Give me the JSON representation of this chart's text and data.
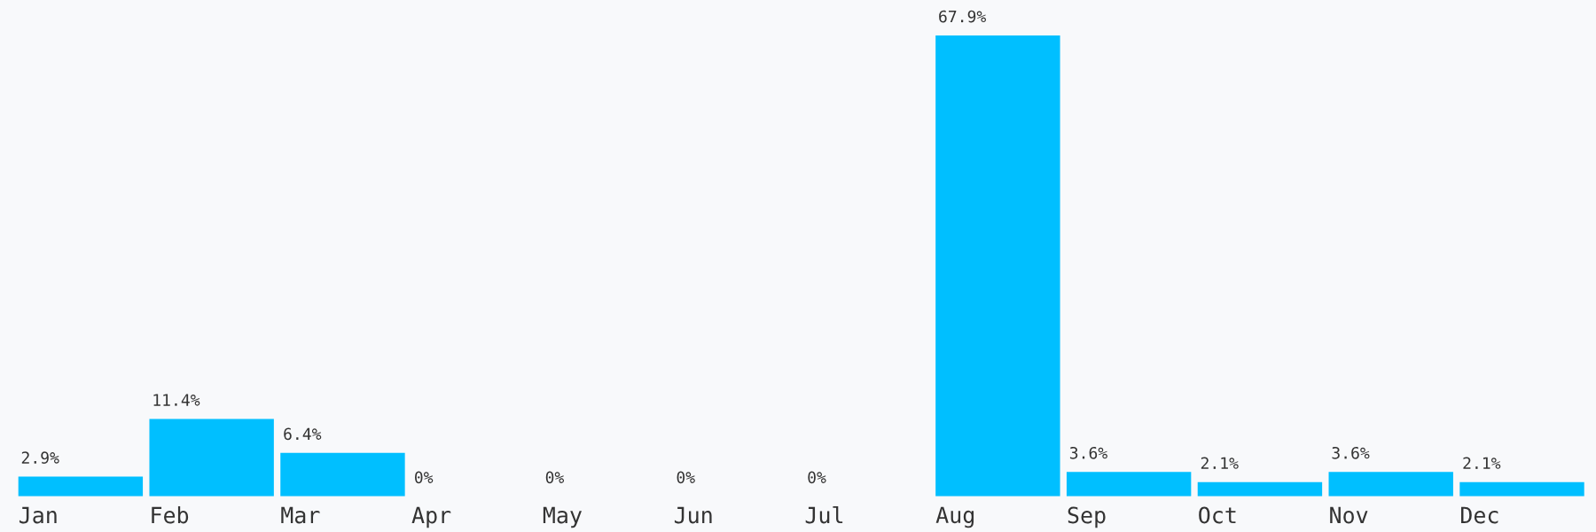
{
  "chart_data": {
    "type": "bar",
    "categories": [
      "Jan",
      "Feb",
      "Mar",
      "Apr",
      "May",
      "Jun",
      "Jul",
      "Aug",
      "Sep",
      "Oct",
      "Nov",
      "Dec"
    ],
    "values": [
      2.9,
      11.4,
      6.4,
      0,
      0,
      0,
      0,
      67.9,
      3.6,
      2.1,
      3.6,
      2.1
    ],
    "value_labels": [
      "2.9%",
      "11.4%",
      "6.4%",
      "0%",
      "0%",
      "0%",
      "0%",
      "67.9%",
      "3.6%",
      "2.1%",
      "3.6%",
      "2.1%"
    ],
    "color": "#00bfff"
  }
}
